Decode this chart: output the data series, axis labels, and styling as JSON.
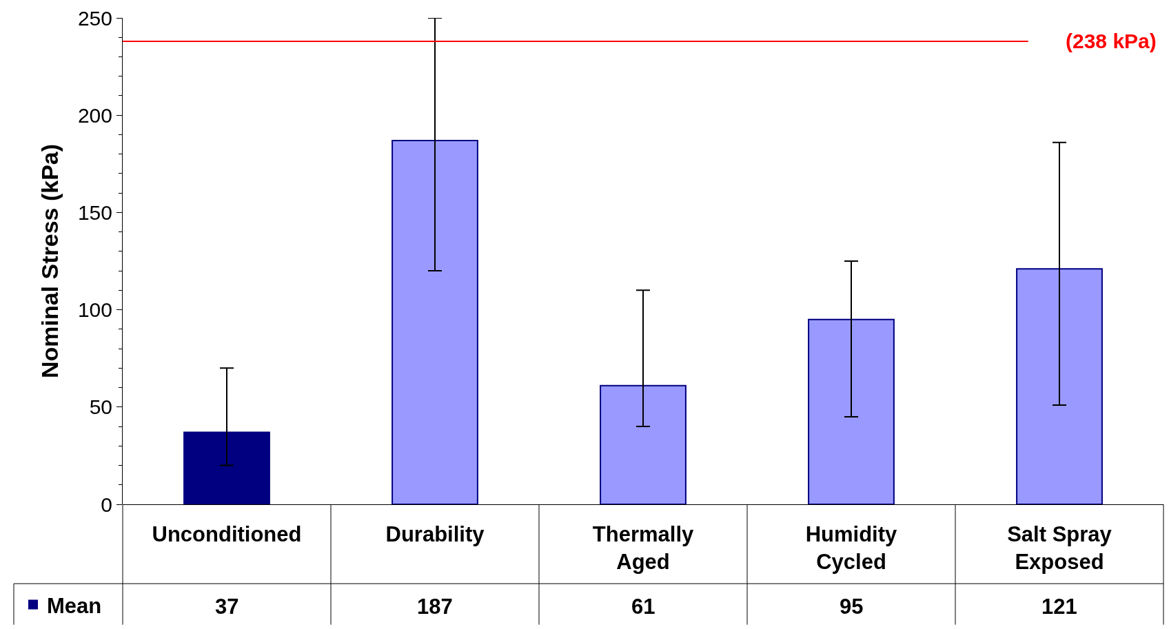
{
  "chart_data": {
    "type": "bar",
    "ylabel": "Nominal Stress (kPa)",
    "categories": [
      "Unconditioned",
      "Durability",
      "Thermally Aged",
      "Humidity Cycled",
      "Salt Spray Exposed"
    ],
    "series": [
      {
        "name": "Mean",
        "colors": [
          "#000080",
          "#9999ff",
          "#9999ff",
          "#9999ff",
          "#9999ff"
        ],
        "values": [
          37,
          187,
          61,
          95,
          121
        ],
        "errors": [
          [
            20,
            70
          ],
          [
            120,
            250
          ],
          [
            40,
            110
          ],
          [
            45,
            125
          ],
          [
            51,
            186
          ]
        ]
      }
    ],
    "ylim": [
      0,
      250
    ],
    "yticks": [
      0,
      50,
      100,
      150,
      200,
      250
    ],
    "grid": false,
    "data_labels": true,
    "legend": "bottom left",
    "ref_lines": [
      {
        "axis": "y",
        "value": 238,
        "label": "(238 kPa)",
        "color": "#ff0000",
        "line_style": "solid"
      }
    ]
  }
}
